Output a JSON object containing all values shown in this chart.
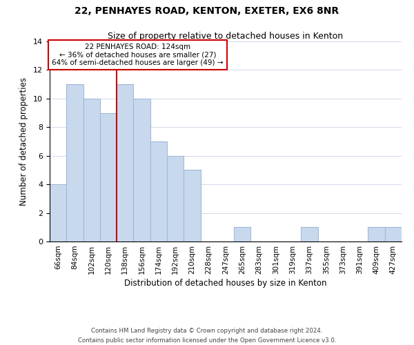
{
  "title": "22, PENHAYES ROAD, KENTON, EXETER, EX6 8NR",
  "subtitle": "Size of property relative to detached houses in Kenton",
  "xlabel": "Distribution of detached houses by size in Kenton",
  "ylabel": "Number of detached properties",
  "bar_color": "#c8d9ee",
  "bar_edge_color": "#a0b8d8",
  "categories": [
    "66sqm",
    "84sqm",
    "102sqm",
    "120sqm",
    "138sqm",
    "156sqm",
    "174sqm",
    "192sqm",
    "210sqm",
    "228sqm",
    "247sqm",
    "265sqm",
    "283sqm",
    "301sqm",
    "319sqm",
    "337sqm",
    "355sqm",
    "373sqm",
    "391sqm",
    "409sqm",
    "427sqm"
  ],
  "values": [
    4,
    11,
    10,
    9,
    11,
    10,
    7,
    6,
    5,
    0,
    0,
    1,
    0,
    0,
    0,
    1,
    0,
    0,
    0,
    1,
    1
  ],
  "ylim": [
    0,
    14
  ],
  "yticks": [
    0,
    2,
    4,
    6,
    8,
    10,
    12,
    14
  ],
  "property_line_x": 3.5,
  "annotation_title": "22 PENHAYES ROAD: 124sqm",
  "annotation_line1": "← 36% of detached houses are smaller (27)",
  "annotation_line2": "64% of semi-detached houses are larger (49) →",
  "annotation_box_color": "#ffffff",
  "annotation_box_edge_color": "#cc0000",
  "vline_color": "#cc0000",
  "footer1": "Contains HM Land Registry data © Crown copyright and database right 2024.",
  "footer2": "Contains public sector information licensed under the Open Government Licence v3.0."
}
